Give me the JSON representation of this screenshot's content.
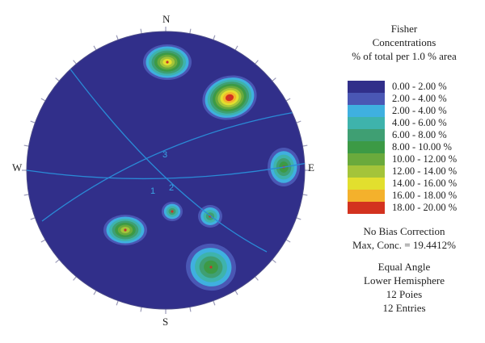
{
  "compass": {
    "n": "N",
    "s": "S",
    "w": "W",
    "e": "E"
  },
  "title": {
    "line1": "Fisher",
    "line2": "Concentrations",
    "line3": "% of total per 1.0 % area"
  },
  "legend": [
    {
      "label": "0.00 - 2.00 %",
      "color": "#312f8a"
    },
    {
      "label": "2.00 - 4.00 %",
      "color": "#4a57b4"
    },
    {
      "label": "2.00 - 4.00 %",
      "color": "#3fb0e0"
    },
    {
      "label": "4.00 - 6.00 %",
      "color": "#3eb3ac"
    },
    {
      "label": "6.00 - 8.00 %",
      "color": "#3f9f73"
    },
    {
      "label": "8.00 - 10.00 %",
      "color": "#3c9a45"
    },
    {
      "label": "10.00 - 12.00 %",
      "color": "#6aaa3c"
    },
    {
      "label": "12.00 - 14.00 %",
      "color": "#a4c43a"
    },
    {
      "label": "14.00 - 16.00 %",
      "color": "#e2df2e"
    },
    {
      "label": "16.00 - 18.00 %",
      "color": "#f4b12c"
    },
    {
      "label": "18.00 - 20.00 %",
      "color": "#d3321f"
    }
  ],
  "info": {
    "bias": "No Bias Correction",
    "max": "Max, Conc. = 19.4412%"
  },
  "projection": {
    "line1": "Equal Angle",
    "line2": "Lower Hemisphere",
    "line3": "12 Poies",
    "line4": "12 Entries"
  },
  "plane_labels": [
    "1",
    "2",
    "3"
  ],
  "colors": {
    "net_fill": "#312f8a",
    "great_circle": "#2a8ad6",
    "tick": "#9a9ab8",
    "center_mark": "#c0392b"
  }
}
